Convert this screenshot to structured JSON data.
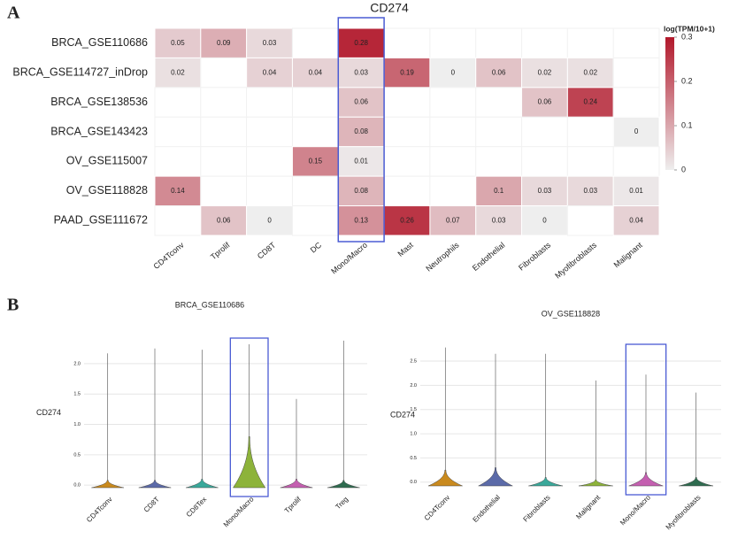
{
  "chart_data": [
    {
      "type": "heatmap",
      "panel": "A",
      "title": "CD274",
      "rows": [
        "BRCA_GSE110686",
        "BRCA_GSE114727_inDrop",
        "BRCA_GSE138536",
        "BRCA_GSE143423",
        "OV_GSE115007",
        "OV_GSE118828",
        "PAAD_GSE111672"
      ],
      "columns": [
        "CD4Tconv",
        "Tprolif",
        "CD8T",
        "DC",
        "Mono/Macro",
        "Mast",
        "Neutrophils",
        "Endothelial",
        "Fibroblasts",
        "Myofibroblasts",
        "Malignant"
      ],
      "values": [
        [
          0.05,
          0.09,
          0.03,
          null,
          0.28,
          null,
          null,
          null,
          null,
          null,
          null
        ],
        [
          0.02,
          null,
          0.04,
          0.04,
          0.03,
          0.19,
          0,
          0.06,
          0.02,
          0.02,
          null
        ],
        [
          null,
          null,
          null,
          null,
          0.06,
          null,
          null,
          null,
          0.06,
          0.24,
          null
        ],
        [
          null,
          null,
          null,
          null,
          0.08,
          null,
          null,
          null,
          null,
          null,
          0
        ],
        [
          null,
          null,
          null,
          0.15,
          0.01,
          null,
          null,
          null,
          null,
          null,
          null
        ],
        [
          0.14,
          null,
          null,
          null,
          0.08,
          null,
          null,
          0.1,
          0.03,
          0.03,
          0.01
        ],
        [
          null,
          0.06,
          0,
          null,
          0.13,
          0.26,
          0.07,
          0.03,
          0,
          null,
          0.04
        ]
      ],
      "zlim": [
        0,
        0.3
      ],
      "zticks": [
        0,
        0.1,
        0.2,
        0.3
      ],
      "colorbar_label": "log(TPM/10+1)",
      "colormap": [
        "#eeeeee",
        "#b2182b"
      ],
      "highlight": 4
    },
    {
      "type": "violin",
      "panel": "B",
      "title": "BRCA_GSE110686",
      "ylabel": "CD274",
      "categories": [
        "CD4Tconv",
        "CD8T",
        "CD8Tex",
        "Mono/Macro",
        "Tprolif",
        "Treg"
      ],
      "colors": [
        "#c98a1e",
        "#5b6aa8",
        "#3aa89a",
        "#8db33a",
        "#c45fb0",
        "#2e6b4f"
      ],
      "values": [
        2.17,
        2.25,
        2.23,
        2.32,
        1.42,
        2.38
      ],
      "body": [
        0.08,
        0.08,
        0.1,
        0.8,
        0.1,
        0.08
      ],
      "ylim": [
        -0.1,
        2.48
      ],
      "yticks": [
        {
          "value": 0,
          "label": "0.0"
        },
        {
          "value": 0.5,
          "label": "0.5"
        },
        {
          "value": 1,
          "label": "1.0"
        },
        {
          "value": 1.5,
          "label": "1.5"
        },
        {
          "value": 2,
          "label": "2.0"
        }
      ],
      "grid": true,
      "highlight": 3
    },
    {
      "type": "violin",
      "title": "OV_GSE118828",
      "ylabel": "CD274",
      "categories": [
        "CD4Tconv",
        "Endothelial",
        "Fibroblasts",
        "Malignant",
        "Mono/Macro",
        "Myofibroblasts"
      ],
      "colors": [
        "#c98a1e",
        "#5b6aa8",
        "#3aa89a",
        "#8db33a",
        "#c45fb0",
        "#2e6b4f"
      ],
      "values": [
        2.78,
        2.65,
        2.65,
        2.1,
        2.22,
        1.85
      ],
      "body": [
        0.25,
        0.3,
        0.1,
        0.05,
        0.2,
        0.1
      ],
      "ylim": [
        -0.15,
        2.92
      ],
      "yticks": [
        {
          "value": 0,
          "label": "0.0"
        },
        {
          "value": 0.5,
          "label": "0.5"
        },
        {
          "value": 1,
          "label": "1.0"
        },
        {
          "value": 1.5,
          "label": "1.5"
        },
        {
          "value": 2,
          "label": "2.0"
        },
        {
          "value": 2.5,
          "label": "2.5"
        }
      ],
      "grid": true,
      "highlight": 4
    }
  ]
}
